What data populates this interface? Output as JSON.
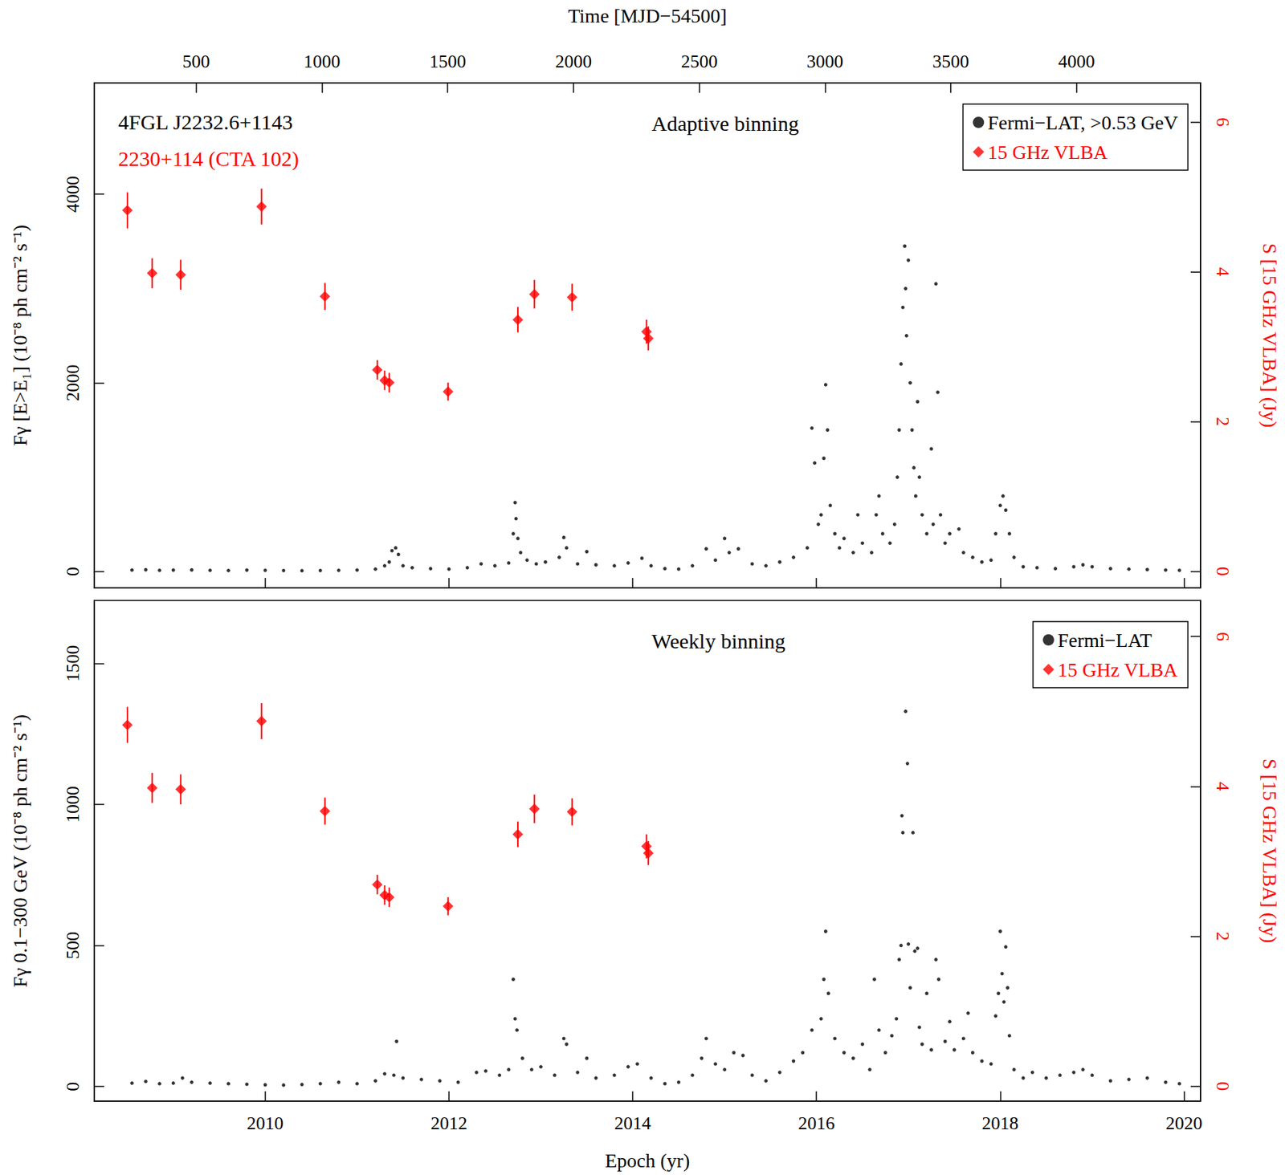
{
  "chart_data": [
    {
      "type": "scatter",
      "title": "Adaptive binning",
      "annotations": [
        {
          "text": "4FGL J2232.6+1143",
          "color": "#000000"
        },
        {
          "text": "2230+114 (CTA 102)",
          "color": "#ff0000"
        }
      ],
      "x2label": "Time [MJD−54500]",
      "x2lim": [
        95,
        4493
      ],
      "x2ticks": [
        500,
        1000,
        1500,
        2000,
        2500,
        3000,
        3500,
        4000
      ],
      "xlim": [
        2008.14,
        2020.18
      ],
      "xticks": [
        2010,
        2012,
        2014,
        2016,
        2018,
        2020
      ],
      "ylabel": "Fγ [E>E₁] (10⁻⁸ ph cm⁻² s⁻¹)",
      "ylim": [
        -174,
        5180
      ],
      "yticks": [
        0,
        2000,
        4000
      ],
      "y2label": "S [15 GHz VLBA] (Jy)",
      "y2lim": [
        -0.22,
        6.52
      ],
      "y2ticks": [
        0,
        2,
        4,
        6
      ],
      "tick_labels": "y",
      "grid": false,
      "legend": "upper right",
      "series": [
        {
          "name": "Fermi−LAT, >0.53 GeV",
          "color": "#000000",
          "marker": "circle",
          "x": [
            2008.55,
            2008.7,
            2008.85,
            2009.0,
            2009.2,
            2009.4,
            2009.6,
            2009.8,
            2010.0,
            2010.2,
            2010.4,
            2010.6,
            2010.8,
            2011.0,
            2011.2,
            2011.3,
            2011.35,
            2011.38,
            2011.42,
            2011.45,
            2011.5,
            2011.6,
            2011.8,
            2012.0,
            2012.2,
            2012.35,
            2012.5,
            2012.65,
            2012.7,
            2012.72,
            2012.73,
            2012.75,
            2012.78,
            2012.85,
            2012.95,
            2013.05,
            2013.2,
            2013.25,
            2013.28,
            2013.4,
            2013.5,
            2013.6,
            2013.8,
            2013.95,
            2014.1,
            2014.2,
            2014.35,
            2014.5,
            2014.65,
            2014.8,
            2014.9,
            2015.0,
            2015.05,
            2015.15,
            2015.3,
            2015.45,
            2015.6,
            2015.75,
            2015.9,
            2015.95,
            2015.98,
            2016.02,
            2016.05,
            2016.08,
            2016.1,
            2016.12,
            2016.15,
            2016.2,
            2016.25,
            2016.3,
            2016.4,
            2016.45,
            2016.5,
            2016.6,
            2016.65,
            2016.68,
            2016.72,
            2016.8,
            2016.85,
            2016.88,
            2016.9,
            2016.92,
            2016.94,
            2016.96,
            2016.97,
            2016.98,
            2017.0,
            2017.02,
            2017.04,
            2017.06,
            2017.08,
            2017.1,
            2017.12,
            2017.15,
            2017.2,
            2017.25,
            2017.27,
            2017.3,
            2017.32,
            2017.35,
            2017.4,
            2017.45,
            2017.55,
            2017.6,
            2017.7,
            2017.8,
            2017.9,
            2017.95,
            2018.0,
            2018.03,
            2018.06,
            2018.1,
            2018.15,
            2018.25,
            2018.4,
            2018.6,
            2018.8,
            2018.9,
            2019.0,
            2019.2,
            2019.4,
            2019.6,
            2019.8,
            2019.95
          ],
          "values": [
            15,
            18,
            12,
            14,
            16,
            12,
            10,
            14,
            12,
            10,
            8,
            10,
            12,
            15,
            25,
            60,
            100,
            220,
            250,
            180,
            60,
            40,
            30,
            25,
            40,
            80,
            60,
            90,
            400,
            730,
            560,
            350,
            200,
            120,
            80,
            100,
            150,
            360,
            250,
            80,
            210,
            70,
            60,
            90,
            140,
            60,
            30,
            25,
            60,
            240,
            120,
            350,
            200,
            240,
            80,
            60,
            100,
            150,
            250,
            1520,
            1150,
            500,
            600,
            1200,
            1980,
            1500,
            700,
            400,
            250,
            350,
            200,
            600,
            300,
            200,
            600,
            800,
            400,
            300,
            500,
            1000,
            1500,
            2200,
            2800,
            3450,
            3000,
            2500,
            3300,
            2000,
            1500,
            1100,
            800,
            1800,
            1000,
            600,
            400,
            1300,
            500,
            3050,
            1900,
            600,
            300,
            400,
            450,
            200,
            150,
            100,
            120,
            400,
            700,
            800,
            650,
            400,
            150,
            50,
            40,
            30,
            50,
            70,
            50,
            30,
            25,
            20,
            15,
            12
          ]
        },
        {
          "name": "15 GHz VLBA",
          "color": "#ff0000",
          "marker": "diamond",
          "axis": "y2",
          "x": [
            2008.5,
            2008.77,
            2009.08,
            2009.96,
            2010.65,
            2011.22,
            2011.3,
            2011.35,
            2011.99,
            2012.75,
            2012.93,
            2013.34,
            2014.15,
            2014.17
          ],
          "values": [
            4.82,
            3.98,
            3.96,
            4.87,
            3.67,
            2.69,
            2.55,
            2.52,
            2.4,
            3.36,
            3.7,
            3.66,
            3.2,
            3.11
          ],
          "errors": [
            0.24,
            0.2,
            0.2,
            0.24,
            0.18,
            0.13,
            0.13,
            0.13,
            0.12,
            0.17,
            0.19,
            0.18,
            0.16,
            0.16
          ]
        }
      ]
    },
    {
      "type": "scatter",
      "title": "Weekly binning",
      "xlabel": "Epoch (yr)",
      "xlim": [
        2008.14,
        2020.18
      ],
      "xticks": [
        2010,
        2012,
        2014,
        2016,
        2018,
        2020
      ],
      "ylabel": "Fγ 0.1−300 GeV (10⁻⁸ ph cm⁻² s⁻¹)",
      "ylim": [
        -52,
        1723
      ],
      "yticks": [
        0,
        500,
        1000,
        1500
      ],
      "y2label": "S [15 GHz VLBA] (Jy)",
      "y2lim": [
        -0.2,
        6.48
      ],
      "y2ticks": [
        0,
        2,
        4,
        6
      ],
      "grid": false,
      "legend": "upper right",
      "series": [
        {
          "name": "Fermi−LAT",
          "color": "#000000",
          "marker": "circle",
          "x": [
            2008.55,
            2008.7,
            2008.85,
            2009.0,
            2009.1,
            2009.2,
            2009.4,
            2009.6,
            2009.8,
            2010.0,
            2010.2,
            2010.4,
            2010.6,
            2010.8,
            2011.0,
            2011.2,
            2011.3,
            2011.4,
            2011.43,
            2011.5,
            2011.7,
            2011.9,
            2012.1,
            2012.3,
            2012.4,
            2012.55,
            2012.65,
            2012.7,
            2012.72,
            2012.74,
            2012.8,
            2012.9,
            2013.0,
            2013.15,
            2013.25,
            2013.28,
            2013.4,
            2013.5,
            2013.6,
            2013.8,
            2013.95,
            2014.05,
            2014.2,
            2014.35,
            2014.5,
            2014.65,
            2014.75,
            2014.8,
            2014.9,
            2015.0,
            2015.1,
            2015.2,
            2015.3,
            2015.45,
            2015.6,
            2015.75,
            2015.85,
            2015.95,
            2016.05,
            2016.08,
            2016.1,
            2016.13,
            2016.2,
            2016.3,
            2016.4,
            2016.5,
            2016.58,
            2016.63,
            2016.68,
            2016.75,
            2016.82,
            2016.87,
            2016.9,
            2016.92,
            2016.93,
            2016.94,
            2016.97,
            2016.99,
            2017.0,
            2017.02,
            2017.05,
            2017.07,
            2017.1,
            2017.12,
            2017.15,
            2017.2,
            2017.25,
            2017.3,
            2017.33,
            2017.4,
            2017.45,
            2017.5,
            2017.6,
            2017.65,
            2017.7,
            2017.8,
            2017.9,
            2017.95,
            2017.98,
            2018.0,
            2018.02,
            2018.04,
            2018.06,
            2018.08,
            2018.1,
            2018.15,
            2018.25,
            2018.35,
            2018.5,
            2018.65,
            2018.8,
            2018.9,
            2019.0,
            2019.2,
            2019.4,
            2019.6,
            2019.8,
            2019.95
          ],
          "values": [
            12,
            18,
            10,
            12,
            30,
            15,
            12,
            10,
            8,
            6,
            5,
            7,
            10,
            15,
            10,
            20,
            45,
            40,
            160,
            30,
            25,
            20,
            15,
            50,
            55,
            40,
            60,
            380,
            240,
            200,
            100,
            60,
            70,
            40,
            170,
            150,
            50,
            100,
            30,
            40,
            70,
            80,
            30,
            10,
            15,
            40,
            100,
            170,
            80,
            60,
            120,
            110,
            40,
            20,
            50,
            90,
            120,
            200,
            240,
            380,
            550,
            330,
            170,
            120,
            100,
            150,
            60,
            380,
            200,
            120,
            180,
            240,
            450,
            500,
            960,
            900,
            1330,
            1145,
            505,
            350,
            900,
            480,
            490,
            210,
            150,
            330,
            130,
            450,
            380,
            160,
            230,
            130,
            170,
            260,
            120,
            90,
            80,
            250,
            330,
            550,
            400,
            300,
            495,
            350,
            180,
            60,
            30,
            50,
            30,
            40,
            50,
            60,
            40,
            20,
            25,
            30,
            15,
            10
          ]
        },
        {
          "name": "15 GHz VLBA",
          "color": "#ff0000",
          "marker": "diamond",
          "axis": "y2",
          "x": [
            2008.5,
            2008.77,
            2009.08,
            2009.96,
            2010.65,
            2011.22,
            2011.3,
            2011.35,
            2011.99,
            2012.75,
            2012.93,
            2013.34,
            2014.15,
            2014.17
          ],
          "values": [
            4.82,
            3.98,
            3.96,
            4.87,
            3.67,
            2.69,
            2.55,
            2.52,
            2.4,
            3.36,
            3.7,
            3.66,
            3.2,
            3.11
          ],
          "errors": [
            0.24,
            0.2,
            0.2,
            0.24,
            0.18,
            0.13,
            0.13,
            0.13,
            0.12,
            0.17,
            0.19,
            0.18,
            0.16,
            0.16
          ]
        }
      ]
    }
  ]
}
